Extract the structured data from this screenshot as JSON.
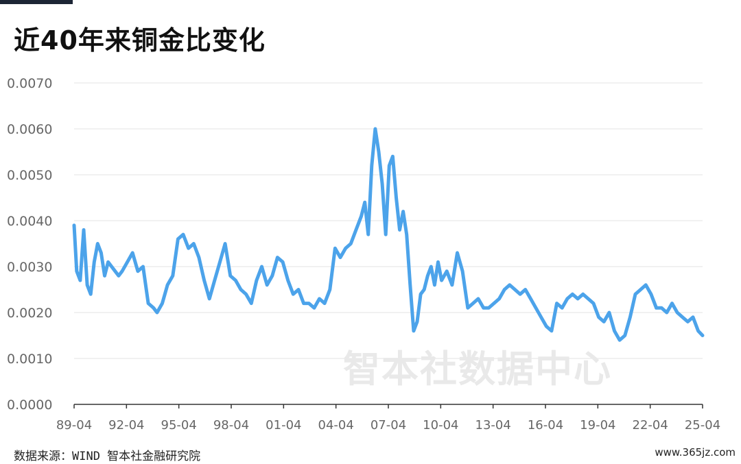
{
  "header": {
    "title": "近40年来铜金比变化"
  },
  "footer": {
    "source": "数据来源：WIND 智本社金融研究院",
    "site": "www.365jz.com"
  },
  "watermark": "智本社数据中心",
  "colors": {
    "line": "#4ca3ea",
    "grid": "#e3e3e3",
    "axis": "#333333",
    "tick_text": "#666666"
  },
  "chart_data": {
    "type": "line",
    "title": "近40年来铜金比变化",
    "xlabel": "",
    "ylabel": "",
    "ylim": [
      0.0,
      0.007
    ],
    "yticks": [
      "0.0070",
      "0.0060",
      "0.0050",
      "0.0040",
      "0.0030",
      "0.0020",
      "0.0010",
      "0.0000"
    ],
    "ytick_values": [
      0.007,
      0.006,
      0.005,
      0.004,
      0.003,
      0.002,
      0.001,
      0.0
    ],
    "xticks": [
      "89-04",
      "92-04",
      "95-04",
      "98-04",
      "01-04",
      "04-04",
      "07-04",
      "10-04",
      "13-04",
      "16-04",
      "19-04",
      "22-04",
      "25-04"
    ],
    "xlim": [
      1989.25,
      2025.25
    ],
    "grid": true,
    "legend": "none",
    "series": [
      {
        "x": [
          1989.25,
          1989.4,
          1989.6,
          1989.8,
          1990.0,
          1990.2,
          1990.4,
          1990.6,
          1990.8,
          1991.0,
          1991.2,
          1991.4,
          1991.6,
          1991.8,
          1992.0,
          1992.3,
          1992.6,
          1992.9,
          1993.2,
          1993.5,
          1993.8,
          1994.0,
          1994.3,
          1994.6,
          1994.9,
          1995.2,
          1995.5,
          1995.8,
          1996.1,
          1996.4,
          1996.7,
          1997.0,
          1997.3,
          1997.6,
          1997.9,
          1998.2,
          1998.5,
          1998.8,
          1999.1,
          1999.4,
          1999.7,
          2000.0,
          2000.3,
          2000.6,
          2000.9,
          2001.2,
          2001.5,
          2001.8,
          2002.1,
          2002.4,
          2002.7,
          2003.0,
          2003.3,
          2003.6,
          2003.9,
          2004.2,
          2004.5,
          2004.8,
          2005.1,
          2005.4,
          2005.7,
          2005.9,
          2006.1,
          2006.3,
          2006.5,
          2006.7,
          2006.9,
          2007.1,
          2007.3,
          2007.5,
          2007.7,
          2007.9,
          2008.1,
          2008.3,
          2008.5,
          2008.7,
          2008.9,
          2009.1,
          2009.3,
          2009.5,
          2009.7,
          2009.9,
          2010.1,
          2010.3,
          2010.6,
          2010.9,
          2011.2,
          2011.5,
          2011.8,
          2012.1,
          2012.4,
          2012.7,
          2013.0,
          2013.3,
          2013.6,
          2013.9,
          2014.2,
          2014.5,
          2014.8,
          2015.1,
          2015.4,
          2015.7,
          2016.0,
          2016.3,
          2016.6,
          2016.9,
          2017.2,
          2017.5,
          2017.8,
          2018.1,
          2018.4,
          2018.7,
          2019.0,
          2019.3,
          2019.6,
          2019.9,
          2020.2,
          2020.5,
          2020.8,
          2021.1,
          2021.4,
          2021.7,
          2022.0,
          2022.3,
          2022.6,
          2022.9,
          2023.2,
          2023.5,
          2023.8,
          2024.1,
          2024.4,
          2024.7,
          2025.0,
          2025.25
        ],
        "y": [
          0.0039,
          0.0029,
          0.0027,
          0.0038,
          0.0026,
          0.0024,
          0.0031,
          0.0035,
          0.0033,
          0.0028,
          0.0031,
          0.003,
          0.0029,
          0.0028,
          0.0029,
          0.0031,
          0.0033,
          0.0029,
          0.003,
          0.0022,
          0.0021,
          0.002,
          0.0022,
          0.0026,
          0.0028,
          0.0036,
          0.0037,
          0.0034,
          0.0035,
          0.0032,
          0.0027,
          0.0023,
          0.0027,
          0.0031,
          0.0035,
          0.0028,
          0.0027,
          0.0025,
          0.0024,
          0.0022,
          0.0027,
          0.003,
          0.0026,
          0.0028,
          0.0032,
          0.0031,
          0.0027,
          0.0024,
          0.0025,
          0.0022,
          0.0022,
          0.0021,
          0.0023,
          0.0022,
          0.0025,
          0.0034,
          0.0032,
          0.0034,
          0.0035,
          0.0038,
          0.0041,
          0.0044,
          0.0037,
          0.0052,
          0.006,
          0.0055,
          0.0048,
          0.0037,
          0.0052,
          0.0054,
          0.0045,
          0.0038,
          0.0042,
          0.0037,
          0.0026,
          0.0016,
          0.0018,
          0.0024,
          0.0025,
          0.0028,
          0.003,
          0.0026,
          0.0031,
          0.0027,
          0.0029,
          0.0026,
          0.0033,
          0.0029,
          0.0021,
          0.0022,
          0.0023,
          0.0021,
          0.0021,
          0.0022,
          0.0023,
          0.0025,
          0.0026,
          0.0025,
          0.0024,
          0.0025,
          0.0023,
          0.0021,
          0.0019,
          0.0017,
          0.0016,
          0.0022,
          0.0021,
          0.0023,
          0.0024,
          0.0023,
          0.0024,
          0.0023,
          0.0022,
          0.0019,
          0.0018,
          0.002,
          0.0016,
          0.0014,
          0.0015,
          0.0019,
          0.0024,
          0.0025,
          0.0026,
          0.0024,
          0.0021,
          0.0021,
          0.002,
          0.0022,
          0.002,
          0.0019,
          0.0018,
          0.0019,
          0.0016,
          0.0015
        ]
      }
    ]
  }
}
